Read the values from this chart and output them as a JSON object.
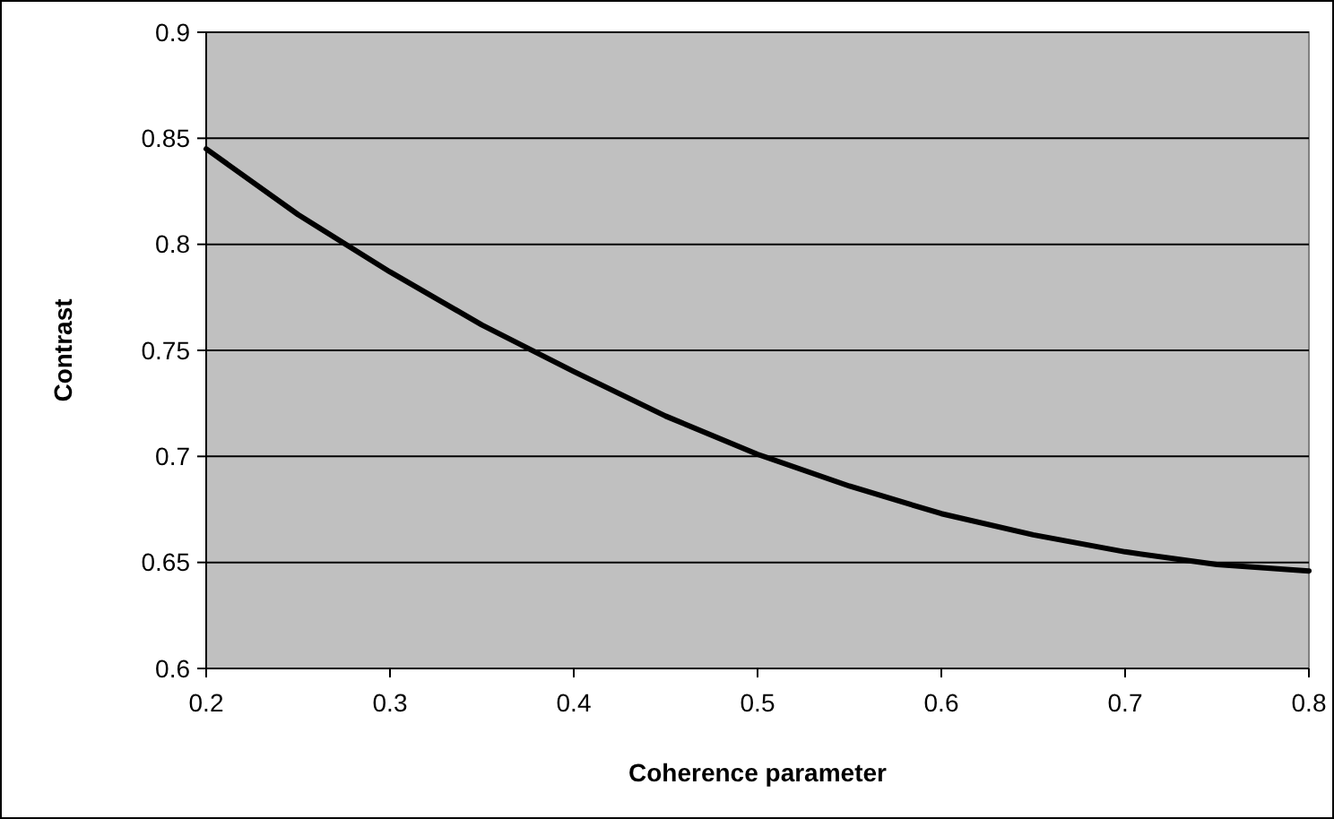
{
  "chart_data": {
    "type": "line",
    "xlabel": "Coherence parameter",
    "ylabel": "Contrast",
    "x": [
      0.2,
      0.25,
      0.3,
      0.35,
      0.4,
      0.45,
      0.5,
      0.55,
      0.6,
      0.65,
      0.7,
      0.75,
      0.8
    ],
    "series": [
      {
        "color": "#000000",
        "values": [
          0.845,
          0.814,
          0.787,
          0.762,
          0.74,
          0.719,
          0.701,
          0.686,
          0.673,
          0.663,
          0.655,
          0.649,
          0.646
        ]
      }
    ],
    "xlim": [
      0.2,
      0.8
    ],
    "xticks": [
      0.2,
      0.3,
      0.4,
      0.5,
      0.6,
      0.7,
      0.8
    ],
    "ylim": [
      0.6,
      0.9
    ],
    "yticks": [
      0.6,
      0.65,
      0.7,
      0.75,
      0.8,
      0.85,
      0.9
    ],
    "grid": "y",
    "marker": "none",
    "line_style": "solid"
  }
}
